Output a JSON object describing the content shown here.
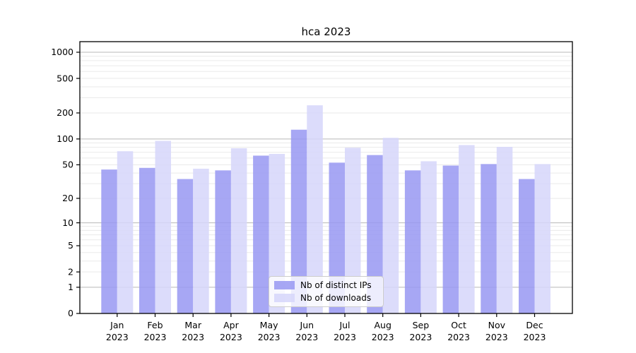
{
  "figure": {
    "background_color": "#ffffff"
  },
  "chart_data": {
    "type": "bar",
    "title": "hca 2023",
    "categories": [
      "Jan 2023",
      "Feb 2023",
      "Mar 2023",
      "Apr 2023",
      "May 2023",
      "Jun 2023",
      "Jul 2023",
      "Aug 2023",
      "Sep 2023",
      "Oct 2023",
      "Nov 2023",
      "Dec 2023"
    ],
    "series": [
      {
        "name": "Nb of distinct IPs",
        "color": "#9898f2",
        "values": [
          44,
          46,
          34,
          43,
          64,
          128,
          53,
          65,
          43,
          49,
          51,
          34
        ]
      },
      {
        "name": "Nb of downloads",
        "color": "#d6d6fa",
        "values": [
          72,
          95,
          45,
          78,
          67,
          245,
          79,
          103,
          55,
          85,
          81,
          51
        ]
      }
    ],
    "y_axis": {
      "scale": "log10(1+value)",
      "ticks": [
        0,
        1,
        2,
        5,
        10,
        20,
        50,
        100,
        200,
        500,
        1000
      ],
      "major_gridlines_at": [
        1,
        10,
        100,
        1000
      ]
    },
    "grid": {
      "major_color": "#b8b8b8",
      "minor_color": "#eaeaea"
    },
    "legend": {
      "position": "lower center"
    },
    "axis_color": "#000000"
  }
}
